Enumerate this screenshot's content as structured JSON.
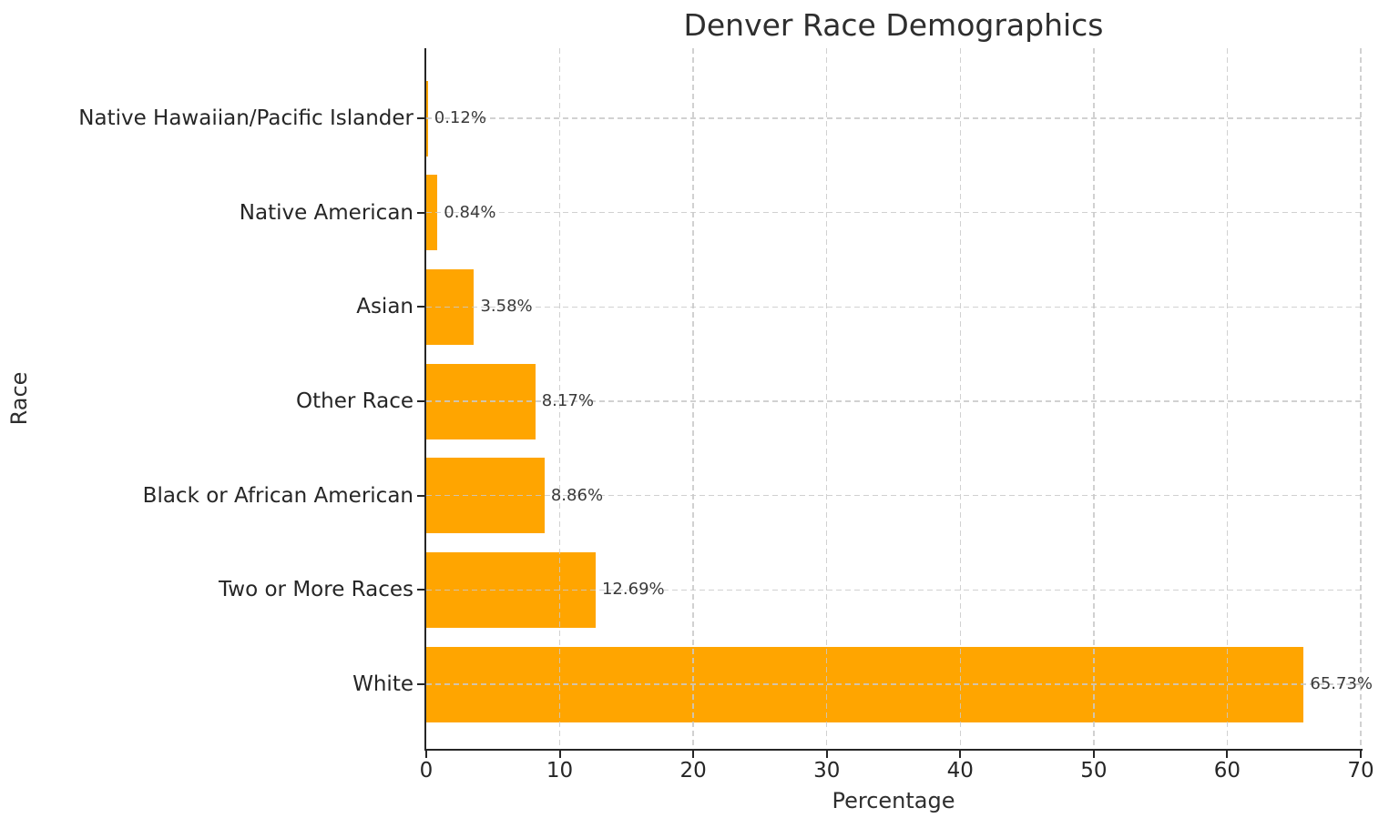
{
  "chart_data": {
    "type": "bar",
    "orientation": "horizontal",
    "title": "Denver Race Demographics",
    "xlabel": "Percentage",
    "ylabel": "Race",
    "categories_top_to_bottom": [
      "Native Hawaiian/Pacific Islander",
      "Native American",
      "Asian",
      "Other Race",
      "Black or African American",
      "Two or More Races",
      "White"
    ],
    "values": [
      0.12,
      0.84,
      3.58,
      8.17,
      8.86,
      12.69,
      65.73
    ],
    "value_labels": [
      "0.12%",
      "0.84%",
      "3.58%",
      "8.17%",
      "8.86%",
      "12.69%",
      "65.73%"
    ],
    "xlim": [
      0,
      70
    ],
    "xticks": [
      0,
      10,
      20,
      30,
      40,
      50,
      60,
      70
    ],
    "xtick_labels": [
      "0",
      "10",
      "20",
      "30",
      "40",
      "50",
      "60",
      "70"
    ],
    "bar_color": "#FFA500",
    "grid": "dashed",
    "grid_color": "#c9c9c9",
    "legend": "none"
  }
}
